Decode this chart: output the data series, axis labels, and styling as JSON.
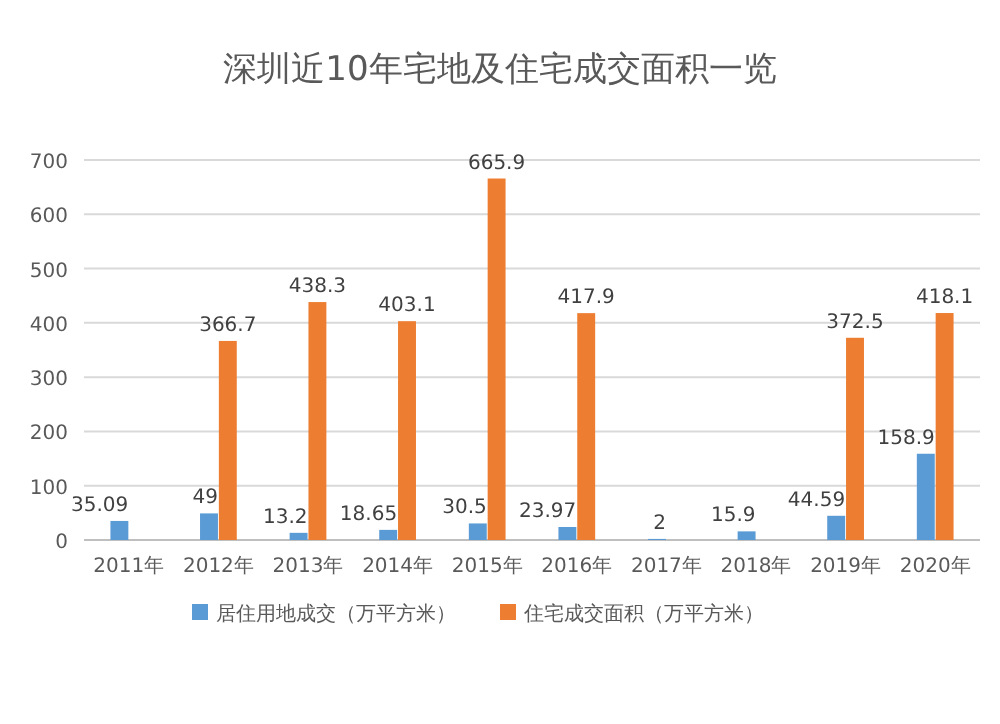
{
  "chart_data": {
    "type": "bar",
    "title": "深圳近10年宅地及住宅成交面积一览",
    "categories": [
      "2011年",
      "2012年",
      "2013年",
      "2014年",
      "2015年",
      "2016年",
      "2017年",
      "2018年",
      "2019年",
      "2020年"
    ],
    "series": [
      {
        "name": "居住用地成交（万平方米）",
        "color": "#5b9bd5",
        "values": [
          35.09,
          49,
          13.2,
          18.65,
          30.5,
          23.97,
          2,
          15.9,
          44.59,
          158.9
        ],
        "value_labels": [
          "35.09",
          "49",
          "13.2",
          "18.65",
          "30.5",
          "23.97",
          "2",
          "15.9",
          "44.59",
          "158.9"
        ]
      },
      {
        "name": "住宅成交面积（万平方米）",
        "color": "#ed7d31",
        "values": [
          null,
          366.7,
          438.3,
          403.1,
          665.9,
          417.9,
          null,
          null,
          372.5,
          418.1
        ],
        "value_labels": [
          null,
          "366.7",
          "438.3",
          "403.1",
          "665.9",
          "417.9",
          null,
          null,
          "372.5",
          "418.1"
        ]
      }
    ],
    "ylim": [
      0,
      700
    ],
    "yticks": [
      0,
      100,
      200,
      300,
      400,
      500,
      600,
      700
    ],
    "grid": "y",
    "legend": "bottom"
  }
}
